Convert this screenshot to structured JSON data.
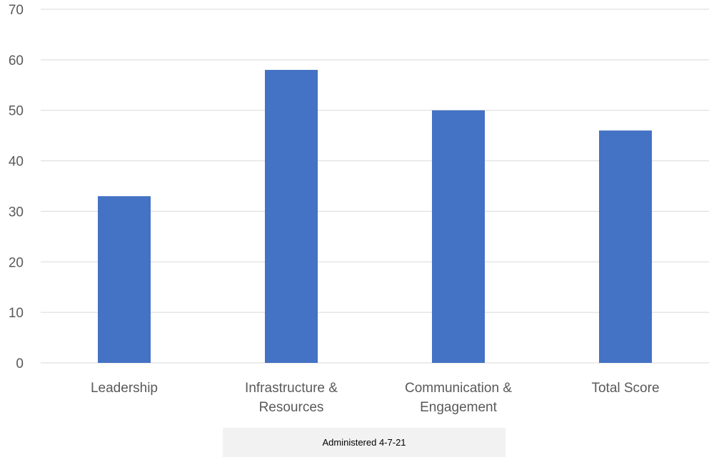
{
  "chart_data": {
    "type": "bar",
    "categories": [
      [
        "Leadership"
      ],
      [
        "Infrastructure &",
        "Resources"
      ],
      [
        "Communication &",
        "Engagement"
      ],
      [
        "Total Score"
      ]
    ],
    "values": [
      33,
      58,
      50,
      46
    ],
    "ylim": [
      0,
      70
    ],
    "yticks": [
      0,
      10,
      20,
      30,
      40,
      50,
      60,
      70
    ],
    "grid": true,
    "bar_color": "#4472c4",
    "grid_color": "#d9d9d9"
  },
  "note": "Administered 4-7-21"
}
